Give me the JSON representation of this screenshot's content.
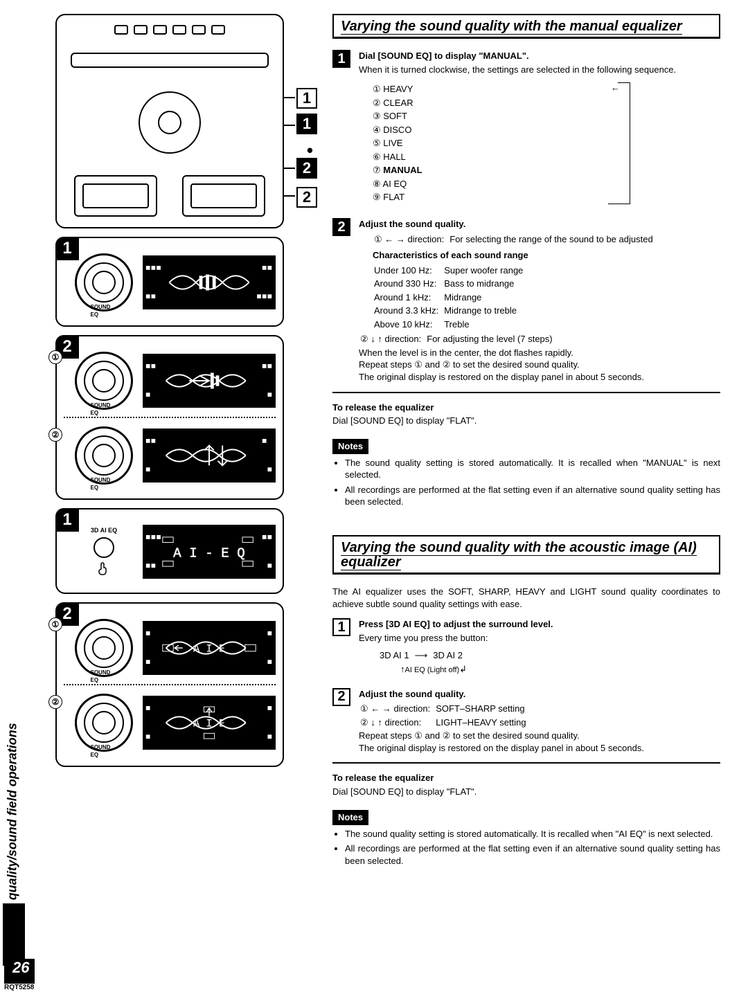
{
  "sideTab": "Sound quality/sound field operations",
  "pageNumber": "26",
  "docCode": "RQT5258",
  "stereo": {
    "callouts": [
      "1",
      "1",
      "2",
      "2"
    ],
    "dot": "•"
  },
  "panels": {
    "p1_badge": "1",
    "p2_sub1": "①",
    "p2_sub2": "②",
    "p2_innerBadge": "2",
    "p3_badge": "1",
    "p3_buttonLabel": "3D AI EQ",
    "p4_sub1": "①",
    "p4_sub2": "②",
    "p4_innerBadge": "2",
    "dialLabel": "SOUND EQ"
  },
  "sec1": {
    "title": "Varying the sound quality with the manual equalizer",
    "step1_head": "Dial [SOUND EQ] to display \"MANUAL\".",
    "step1_body": "When it is turned clockwise, the settings are selected in the following sequence.",
    "sequence": [
      {
        "n": "①",
        "t": "HEAVY"
      },
      {
        "n": "②",
        "t": "CLEAR"
      },
      {
        "n": "③",
        "t": "SOFT"
      },
      {
        "n": "④",
        "t": "DISCO"
      },
      {
        "n": "⑤",
        "t": "LIVE"
      },
      {
        "n": "⑥",
        "t": "HALL"
      },
      {
        "n": "⑦",
        "t": "MANUAL",
        "bold": true
      },
      {
        "n": "⑧",
        "t": "AI EQ"
      },
      {
        "n": "⑨",
        "t": "FLAT"
      }
    ],
    "step2_head": "Adjust the sound quality.",
    "step2_line1_a": "① ← → direction:",
    "step2_line1_b": "For selecting the range of the sound to be adjusted",
    "char_head": "Characteristics of each sound range",
    "char_rows": [
      [
        "Under 100 Hz:",
        "Super woofer range"
      ],
      [
        "Around 330 Hz:",
        "Bass to midrange"
      ],
      [
        "Around 1 kHz:",
        "Midrange"
      ],
      [
        "Around 3.3 kHz:",
        "Midrange to treble"
      ],
      [
        "Above 10 kHz:",
        "Treble"
      ]
    ],
    "step2_line2_a": "② ↓ ↑ direction:",
    "step2_line2_b": "For adjusting the level (7 steps)",
    "step2_p1": "When the level is in the center, the dot flashes rapidly.",
    "step2_p2": "Repeat steps ① and ② to set the desired sound quality.",
    "step2_p3": "The original display is restored on the display panel in about 5 seconds.",
    "release_head": "To release the equalizer",
    "release_body": "Dial [SOUND EQ] to display \"FLAT\".",
    "notes_label": "Notes",
    "notes": [
      "The sound quality setting is stored automatically. It is recalled when \"MANUAL\" is next selected.",
      "All recordings are performed at the flat setting even if an alternative sound quality setting has been selected."
    ]
  },
  "sec2": {
    "title": "Varying the sound quality with the acoustic image (AI) equalizer",
    "intro": "The AI equalizer uses the SOFT, SHARP, HEAVY and LIGHT sound quality coordinates to achieve subtle sound quality settings with ease.",
    "step1_head": "Press [3D AI EQ] to adjust the surround level.",
    "step1_body": "Every time you press the button:",
    "ai_a": "3D AI 1",
    "ai_arrow": "⟶",
    "ai_b": "3D AI 2",
    "ai_off": "AI EQ (Light off)",
    "step2_head": "Adjust the sound quality.",
    "step2_l1a": "① ← → direction:",
    "step2_l1b": "SOFT–SHARP setting",
    "step2_l2a": "② ↓ ↑ direction:",
    "step2_l2b": "LIGHT–HEAVY setting",
    "step2_p1": "Repeat steps ① and ② to set the desired sound quality.",
    "step2_p2": "The original display is restored on the display panel in about 5 seconds.",
    "release_head": "To release the equalizer",
    "release_body": "Dial [SOUND EQ] to display \"FLAT\".",
    "notes_label": "Notes",
    "notes": [
      "The sound quality setting is stored automatically. It is recalled when \"AI EQ\" is next selected.",
      "All recordings are performed at the flat setting even if an alternative sound quality setting has been selected."
    ]
  }
}
